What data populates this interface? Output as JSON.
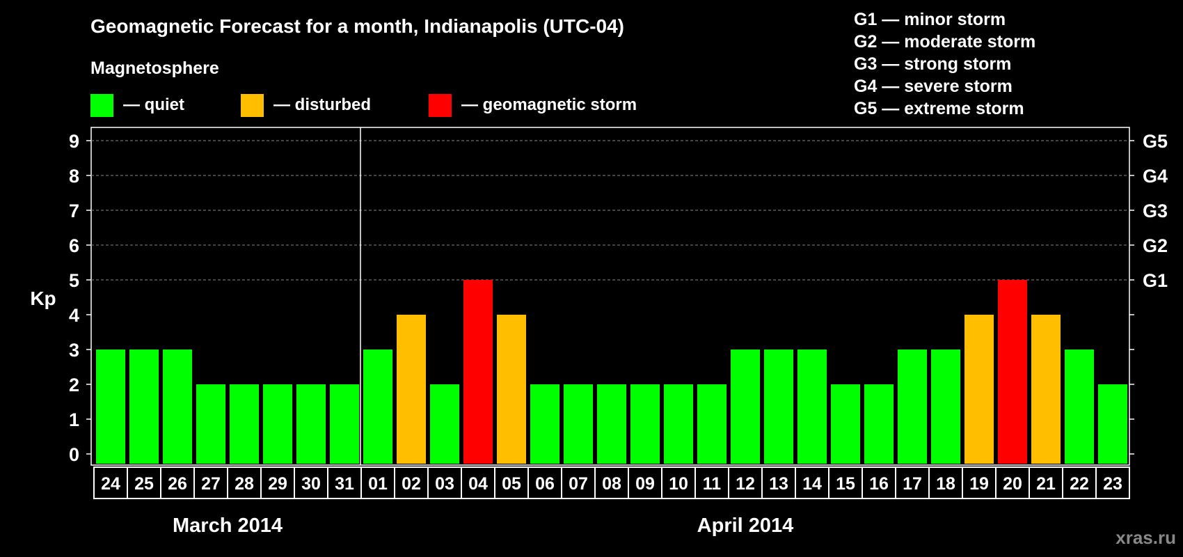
{
  "title": "Geomagnetic Forecast for a month, Indianapolis (UTC-04)",
  "legend": {
    "heading": "Magnetosphere",
    "items": [
      {
        "key": "quiet",
        "label": "— quiet",
        "color": "#00ff00"
      },
      {
        "key": "disturbed",
        "label": "— disturbed",
        "color": "#ffbf00"
      },
      {
        "key": "storm",
        "label": "— geomagnetic storm",
        "color": "#ff0000"
      }
    ]
  },
  "g_scale": [
    {
      "code": "G1",
      "label": "G1 — minor storm"
    },
    {
      "code": "G2",
      "label": "G2 — moderate storm"
    },
    {
      "code": "G3",
      "label": "G3 — strong storm"
    },
    {
      "code": "G4",
      "label": "G4 — severe storm"
    },
    {
      "code": "G5",
      "label": "G5 — extreme storm"
    }
  ],
  "watermark": "xras.ru",
  "chart_data": {
    "type": "bar",
    "title": "Geomagnetic Forecast for a month, Indianapolis (UTC-04)",
    "ylabel": "Kp",
    "ylim": [
      0,
      9
    ],
    "yticks": [
      0,
      1,
      2,
      3,
      4,
      5,
      6,
      7,
      8,
      9
    ],
    "right_axis_labels": [
      {
        "kp": 5,
        "label": "G1"
      },
      {
        "kp": 6,
        "label": "G2"
      },
      {
        "kp": 7,
        "label": "G3"
      },
      {
        "kp": 8,
        "label": "G4"
      },
      {
        "kp": 9,
        "label": "G5"
      }
    ],
    "grid": "dashed horizontal at Kp 5-9",
    "categories": [
      "24",
      "25",
      "26",
      "27",
      "28",
      "29",
      "30",
      "31",
      "01",
      "02",
      "03",
      "04",
      "05",
      "06",
      "07",
      "08",
      "09",
      "10",
      "11",
      "12",
      "13",
      "14",
      "15",
      "16",
      "17",
      "18",
      "19",
      "20",
      "21",
      "22",
      "23"
    ],
    "values": [
      3,
      3,
      3,
      2,
      2,
      2,
      2,
      2,
      3,
      4,
      2,
      5,
      4,
      2,
      2,
      2,
      2,
      2,
      2,
      3,
      3,
      3,
      2,
      2,
      3,
      3,
      4,
      5,
      4,
      3,
      2
    ],
    "month_groups": [
      {
        "label": "March 2014",
        "start": 0,
        "end": 7
      },
      {
        "label": "April 2014",
        "start": 8,
        "end": 30
      }
    ],
    "colors": {
      "quiet": "#00ff00",
      "disturbed": "#ffbf00",
      "storm": "#ff0000"
    }
  }
}
